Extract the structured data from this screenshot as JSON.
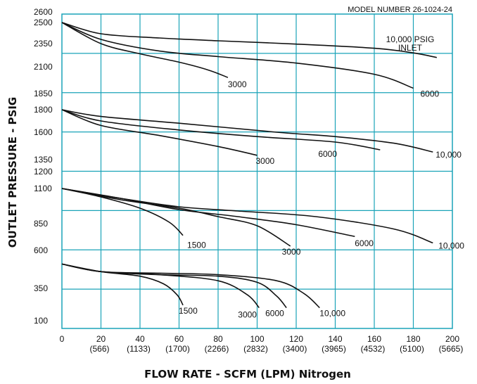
{
  "chart_data": {
    "type": "line",
    "model_number": "MODEL NUMBER  26-1024-24",
    "xlabel": "FLOW RATE - SCFM (LPM)  Nitrogen",
    "ylabel": "OUTLET PRESSURE - PSIG",
    "xlim": [
      0,
      200
    ],
    "grid": true,
    "x_ticks": [
      {
        "value": 0,
        "label": "0",
        "sub": ""
      },
      {
        "value": 20,
        "label": "20",
        "sub": "(566)"
      },
      {
        "value": 40,
        "label": "40",
        "sub": "(1133)"
      },
      {
        "value": 60,
        "label": "60",
        "sub": "(1700)"
      },
      {
        "value": 80,
        "label": "80",
        "sub": "(2266)"
      },
      {
        "value": 100,
        "label": "100",
        "sub": "(2832)"
      },
      {
        "value": 120,
        "label": "120",
        "sub": "(3400)"
      },
      {
        "value": 140,
        "label": "140",
        "sub": "(3965)"
      },
      {
        "value": 160,
        "label": "160",
        "sub": "(4532)"
      },
      {
        "value": 180,
        "label": "180",
        "sub": "(5100)"
      },
      {
        "value": 200,
        "label": "200",
        "sub": "(5665)"
      }
    ],
    "y_ticks": [
      "2600",
      "2500",
      "2350",
      "2100",
      "1850",
      "1800",
      "1600",
      "1350",
      "1200",
      "1100",
      "850",
      "600",
      "350",
      "100"
    ],
    "series": [
      {
        "name": "10,000 PSIG INLET",
        "label_lines": [
          "10,000 PSIG",
          "INLET"
        ],
        "x": [
          0,
          20,
          50,
          80,
          120,
          160,
          180,
          192
        ],
        "y": [
          2500,
          2420,
          2390,
          2370,
          2345,
          2300,
          2250,
          2200
        ]
      },
      {
        "name": "6000",
        "x": [
          0,
          20,
          50,
          80,
          120,
          160,
          180
        ],
        "y": [
          2500,
          2380,
          2270,
          2210,
          2140,
          2030,
          1900
        ]
      },
      {
        "name": "3000",
        "x": [
          0,
          20,
          40,
          60,
          75,
          85
        ],
        "y": [
          2500,
          2350,
          2240,
          2150,
          2070,
          2000
        ]
      },
      {
        "name": "10,000",
        "x": [
          0,
          20,
          60,
          110,
          140,
          170,
          190
        ],
        "y": [
          1800,
          1740,
          1680,
          1600,
          1560,
          1500,
          1420
        ]
      },
      {
        "name": "6000",
        "x": [
          0,
          20,
          60,
          100,
          140,
          163
        ],
        "y": [
          1800,
          1700,
          1620,
          1560,
          1510,
          1440
        ]
      },
      {
        "name": "3000",
        "x": [
          0,
          20,
          50,
          80,
          100
        ],
        "y": [
          1800,
          1660,
          1570,
          1470,
          1390
        ]
      },
      {
        "name": "10,000",
        "x": [
          0,
          30,
          60,
          90,
          130,
          170,
          190
        ],
        "y": [
          1100,
          1030,
          970,
          940,
          900,
          800,
          670
        ]
      },
      {
        "name": "6000",
        "x": [
          0,
          30,
          60,
          90,
          120,
          150
        ],
        "y": [
          1100,
          1030,
          950,
          900,
          840,
          730
        ]
      },
      {
        "name": "3000",
        "x": [
          0,
          30,
          60,
          80,
          100,
          117
        ],
        "y": [
          1100,
          1020,
          960,
          900,
          830,
          640
        ]
      },
      {
        "name": "1500",
        "x": [
          0,
          20,
          40,
          55,
          62
        ],
        "y": [
          1100,
          1040,
          960,
          860,
          740
        ]
      },
      {
        "name": "10,000",
        "x": [
          0,
          20,
          50,
          80,
          110,
          124,
          132
        ],
        "y": [
          510,
          460,
          450,
          440,
          400,
          310,
          200
        ]
      },
      {
        "name": "6000",
        "x": [
          0,
          20,
          50,
          80,
          100,
          110,
          115
        ],
        "y": [
          510,
          460,
          440,
          430,
          390,
          290,
          200
        ]
      },
      {
        "name": "3000",
        "x": [
          0,
          20,
          50,
          80,
          95,
          101
        ],
        "y": [
          510,
          460,
          440,
          400,
          300,
          200
        ]
      },
      {
        "name": "1500",
        "x": [
          0,
          20,
          40,
          52,
          59,
          62
        ],
        "y": [
          510,
          460,
          430,
          380,
          300,
          220
        ]
      }
    ]
  }
}
